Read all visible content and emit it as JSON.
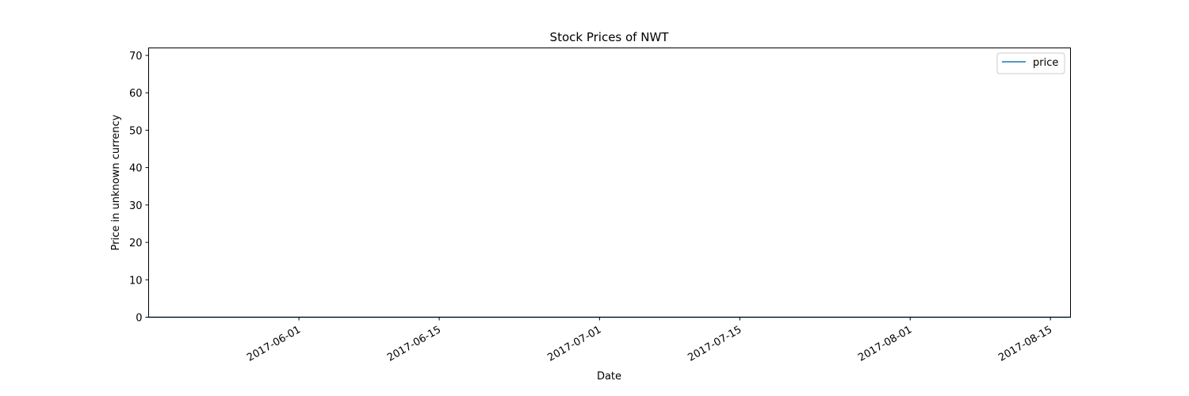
{
  "chart_data": {
    "type": "line",
    "title": "Stock Prices of NWT",
    "xlabel": "Date",
    "ylabel": "Price in unknown currency",
    "xlim": [
      "2017-05-17",
      "2017-08-17"
    ],
    "ylim": [
      0,
      72
    ],
    "x_ticks": [
      "2017-06-01",
      "2017-06-15",
      "2017-07-01",
      "2017-07-15",
      "2017-08-01",
      "2017-08-15"
    ],
    "y_ticks": [
      0,
      10,
      20,
      30,
      40,
      50,
      60,
      70
    ],
    "grid": false,
    "legend_position": "top-right",
    "series": [
      {
        "name": "price",
        "color": "#1f77b4",
        "x": [
          "2017-05-17",
          "2017-06-01",
          "2017-06-15",
          "2017-07-01",
          "2017-07-15",
          "2017-08-01",
          "2017-08-15",
          "2017-08-17"
        ],
        "values": [
          0,
          0,
          0,
          0,
          0,
          0,
          0,
          0
        ]
      }
    ]
  }
}
